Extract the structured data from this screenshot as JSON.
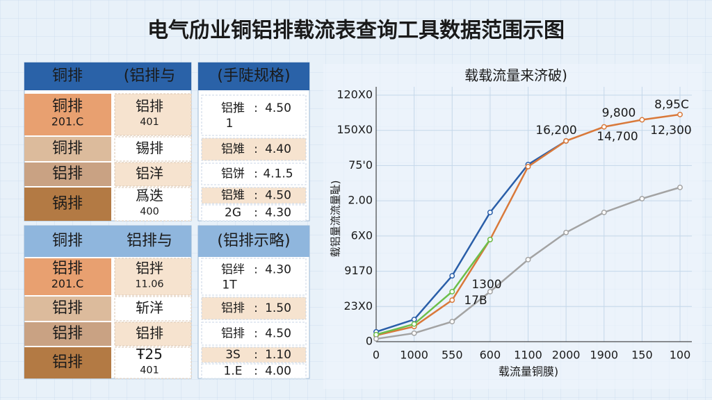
{
  "title": "电气劤业铜铝排载流表查询工具数据范围示图",
  "tables": [
    {
      "left": {
        "header": [
          "铜排",
          "(铝排与"
        ],
        "rows": [
          [
            [
              "铜排",
              "201.C"
            ],
            [
              "铝排",
              "401"
            ]
          ],
          [
            [
              "铜排"
            ],
            [
              "锡排"
            ]
          ],
          [
            [
              "铝排"
            ],
            [
              "铝洋"
            ]
          ],
          [
            [
              "锅排"
            ],
            [
              "爲迭",
              "400"
            ]
          ]
        ]
      },
      "right": {
        "header": "(手陡规格)",
        "sep": ":",
        "rows": [
          [
            "铝推",
            "4.50",
            "1"
          ],
          [
            "铝雉",
            "4.40"
          ],
          [
            "铝饼",
            "4.1.5"
          ],
          [
            "铝雉",
            "4.50"
          ],
          [
            "2G",
            "4.30"
          ]
        ]
      }
    },
    {
      "left": {
        "header": [
          "铜排",
          "铝排与"
        ],
        "rows": [
          [
            [
              "铝排",
              "201.C"
            ],
            [
              "铝拌",
              "11.06"
            ]
          ],
          [
            [
              "铝排"
            ],
            [
              "斩洋"
            ]
          ],
          [
            [
              "铝排"
            ],
            [
              "铝排"
            ]
          ],
          [
            [
              "铝排"
            ],
            [
              "Ŧ25",
              "401"
            ]
          ]
        ]
      },
      "right": {
        "header": "(铝排示略)",
        "sep": ":",
        "rows": [
          [
            "铝绊",
            "4.30",
            "1T"
          ],
          [
            "铝排",
            "1.50"
          ],
          [
            "铝排",
            "4.50"
          ],
          [
            "3S",
            "1.10"
          ],
          [
            "1.E",
            "4.00"
          ]
        ]
      }
    }
  ],
  "chart_data": {
    "type": "line",
    "title": "载载流量来济破)",
    "x_label": "载流量铜膜)",
    "y_label": "载铝量流流量耻)",
    "categories": [
      "0",
      "1000",
      "550",
      "600",
      "1100",
      "2000",
      "1900",
      "150",
      "100"
    ],
    "series": [
      {
        "name": "blue",
        "color": "#2a5ea8",
        "values": [
          0.28,
          0.63,
          1.87,
          3.67,
          5.03,
          5.7,
          null,
          null,
          null
        ]
      },
      {
        "name": "orange",
        "color": "#d9793a",
        "values": [
          0.18,
          0.43,
          1.18,
          2.9,
          4.97,
          5.7,
          6.1,
          6.3,
          6.45
        ]
      },
      {
        "name": "green",
        "color": "#6cbf4a",
        "values": [
          0.2,
          0.5,
          1.42,
          2.9,
          null,
          null,
          null,
          null,
          null
        ]
      },
      {
        "name": "gray",
        "color": "#a3a3a3",
        "values": [
          0.08,
          0.24,
          0.57,
          1.42,
          2.33,
          3.1,
          3.67,
          4.06,
          4.38
        ]
      }
    ],
    "ylim": [
      0,
      7
    ],
    "yticks": [
      {
        "value": 0,
        "label": "0"
      },
      {
        "value": 1,
        "label": "23X0"
      },
      {
        "value": 2,
        "label": "9170"
      },
      {
        "value": 3,
        "label": "6X0"
      },
      {
        "value": 4,
        "label": "2.00"
      },
      {
        "value": 5,
        "label": "75'0"
      },
      {
        "value": 6,
        "label": "150X0"
      },
      {
        "value": 7,
        "label": "120X0"
      }
    ],
    "grid": true,
    "annotations": [
      "16,200",
      "9,800",
      "8,95C",
      "14,700",
      "12,300",
      "1300",
      "17B"
    ]
  }
}
